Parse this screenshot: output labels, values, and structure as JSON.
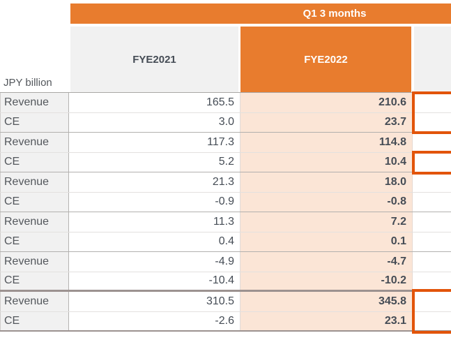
{
  "table": {
    "period_header": "Q1 3 months",
    "unit_label": "JPY billion",
    "columns": [
      "FYE2021",
      "FYE2022"
    ],
    "rows": [
      {
        "label": "Revenue",
        "fye2021": "165.5",
        "fye2022": "210.6"
      },
      {
        "label": "CE",
        "fye2021": "3.0",
        "fye2022": "23.7"
      },
      {
        "label": "Revenue",
        "fye2021": "117.3",
        "fye2022": "114.8"
      },
      {
        "label": "CE",
        "fye2021": "5.2",
        "fye2022": "10.4"
      },
      {
        "label": "Revenue",
        "fye2021": "21.3",
        "fye2022": "18.0"
      },
      {
        "label": "CE",
        "fye2021": "-0.9",
        "fye2022": "-0.8"
      },
      {
        "label": "Revenue",
        "fye2021": "11.3",
        "fye2022": "7.2"
      },
      {
        "label": "CE",
        "fye2021": "0.4",
        "fye2022": "0.1"
      },
      {
        "label": "Revenue",
        "fye2021": "-4.9",
        "fye2022": "-4.7"
      },
      {
        "label": "CE",
        "fye2021": "-10.4",
        "fye2022": "-10.2"
      },
      {
        "label": "Revenue",
        "fye2021": "310.5",
        "fye2022": "345.8"
      },
      {
        "label": "CE",
        "fye2021": "-2.6",
        "fye2022": "23.1"
      }
    ]
  },
  "colors": {
    "orange": "#e87c2e",
    "highlight": "#e2540a",
    "peach": "#fbe5d6",
    "header-gray": "#f1f1f1",
    "text-dark": "#454c55",
    "text-gray": "#53575c"
  }
}
